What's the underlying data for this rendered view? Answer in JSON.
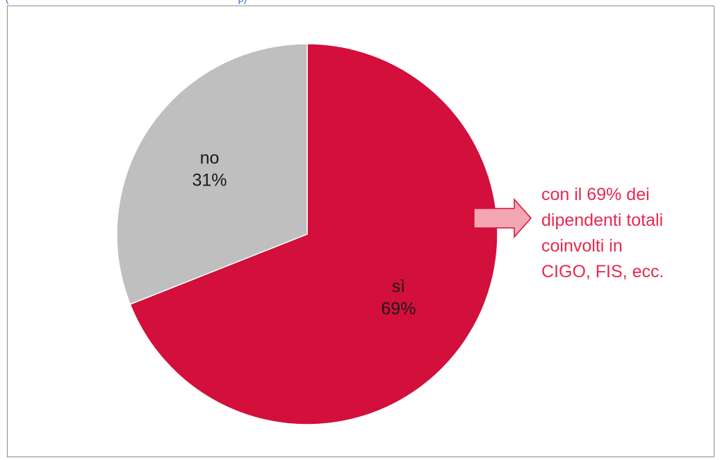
{
  "top_fragment": "(",
  "top_fragment_tail": "p",
  "top_fragment_end": ")",
  "chart_data": {
    "type": "pie",
    "slices": [
      {
        "label": "sì",
        "value": 69,
        "value_text": "69%",
        "color": "#d30f3b",
        "label_color": "#ffffff"
      },
      {
        "label": "no",
        "value": 31,
        "value_text": "31%",
        "color": "#bfbfbf",
        "label_color": "#1a1a1a"
      }
    ],
    "start_angle_deg": 0,
    "direction": "clockwise"
  },
  "annotation": {
    "lines": [
      "con il 69% dei",
      "dipendenti totali",
      "coinvolti in",
      "CIGO, FIS, ecc."
    ],
    "color": "#e8284e",
    "arrow_fill": "#f4a6b3",
    "arrow_stroke": "#d30f3b"
  }
}
